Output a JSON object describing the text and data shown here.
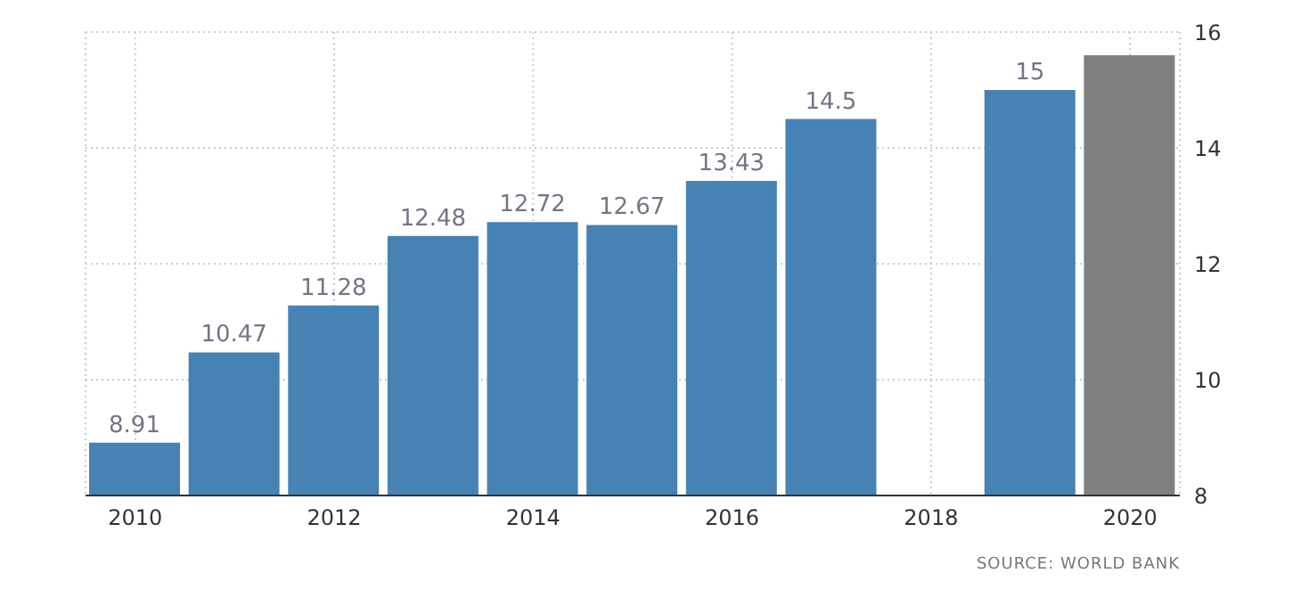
{
  "chart_data": {
    "type": "bar",
    "x": [
      2010,
      2011,
      2012,
      2013,
      2014,
      2015,
      2016,
      2017,
      2018,
      2019,
      2020
    ],
    "values": [
      8.91,
      10.47,
      11.28,
      12.48,
      12.72,
      12.67,
      13.43,
      14.5,
      null,
      15,
      15.6
    ],
    "colors": [
      "#4682b4",
      "#4682b4",
      "#4682b4",
      "#4682b4",
      "#4682b4",
      "#4682b4",
      "#4682b4",
      "#4682b4",
      "#4682b4",
      "#4682b4",
      "#808080"
    ],
    "value_labels": [
      "8.91",
      "10.47",
      "11.28",
      "12.48",
      "12.72",
      "12.67",
      "13.43",
      "14.5",
      null,
      "15",
      null
    ],
    "xlim": [
      2009.5,
      2020.5
    ],
    "xticks": [
      2010,
      2012,
      2014,
      2016,
      2018,
      2020
    ],
    "ylim": [
      8,
      16
    ],
    "yticks": [
      8,
      10,
      12,
      14,
      16
    ],
    "grid": true,
    "annotations": [
      "SOURCE: WORLD BANK"
    ]
  }
}
